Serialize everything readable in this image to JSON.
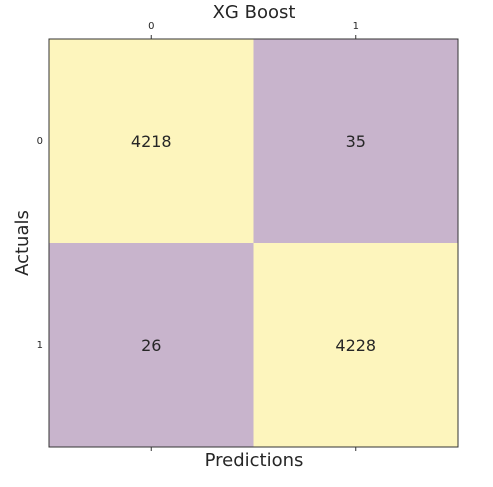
{
  "chart_data": {
    "type": "heatmap",
    "title": "XG Boost",
    "xlabel": "Predictions",
    "ylabel": "Actuals",
    "x_categories": [
      "0",
      "1"
    ],
    "y_categories": [
      "0",
      "1"
    ],
    "values": [
      [
        4218,
        35
      ],
      [
        26,
        4228
      ]
    ],
    "colors": {
      "high": "#fdf5bd",
      "low": "#c8b4cc",
      "frame": "#333333",
      "text": "#262626"
    },
    "x_ticks_position": "top",
    "grid": false
  }
}
